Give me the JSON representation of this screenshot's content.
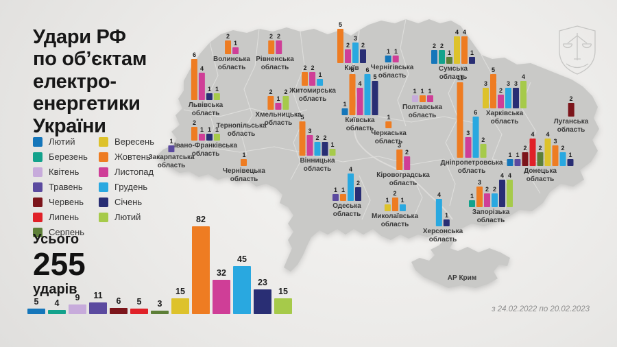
{
  "title": {
    "lines": [
      "Удари РФ",
      "по об’єктам",
      "електро-",
      "енергетики",
      "України"
    ]
  },
  "date_range": "з 24.02.2022 по 20.02.2023",
  "total": {
    "label_top": "Усього",
    "value": "255",
    "label_bottom": "ударів"
  },
  "map": {
    "crimea_label": "АР Крим"
  },
  "logo": {
    "icon": "prosecutor-general-emblem"
  },
  "months": [
    {
      "key": "feb22",
      "label": "Лютий",
      "color": "#1576ba"
    },
    {
      "key": "mar",
      "label": "Березень",
      "color": "#13a28c"
    },
    {
      "key": "apr",
      "label": "Квітень",
      "color": "#c7abdb"
    },
    {
      "key": "may",
      "label": "Травень",
      "color": "#5b4a9f"
    },
    {
      "key": "jun",
      "label": "Червень",
      "color": "#7c151b"
    },
    {
      "key": "jul",
      "label": "Липень",
      "color": "#e02128"
    },
    {
      "key": "aug",
      "label": "Серпень",
      "color": "#5d7f37"
    },
    {
      "key": "sep",
      "label": "Вересень",
      "color": "#ddc22b"
    },
    {
      "key": "oct",
      "label": "Жовтень",
      "color": "#ee7c22"
    },
    {
      "key": "nov",
      "label": "Листопад",
      "color": "#cf3e97"
    },
    {
      "key": "dec",
      "label": "Грудень",
      "color": "#29a8e0"
    },
    {
      "key": "jan",
      "label": "Січень",
      "color": "#292e74"
    },
    {
      "key": "feb23",
      "label": "Лютий",
      "color": "#a6ca4a"
    }
  ],
  "chart_data": [
    {
      "type": "bar",
      "title": "Усього 255 ударів",
      "categories": [
        "Лютий (2022)",
        "Березень",
        "Квітень",
        "Травень",
        "Червень",
        "Липень",
        "Серпень",
        "Вересень",
        "Жовтень",
        "Листопад",
        "Грудень",
        "Січень",
        "Лютий (2023)"
      ],
      "values": [
        5,
        4,
        9,
        11,
        6,
        5,
        3,
        15,
        82,
        32,
        45,
        23,
        15
      ],
      "ylim": [
        0,
        82
      ],
      "legend_position": "left",
      "grid": false
    },
    {
      "type": "bar",
      "subtype": "map-small-multiples",
      "title": "Удари по областях України",
      "regions": [
        {
          "id": "volyn",
          "lines": [
            "Волинська",
            "область"
          ],
          "bars": [
            {
              "month": "oct",
              "value": 2
            },
            {
              "month": "nov",
              "value": 1
            }
          ]
        },
        {
          "id": "rivne",
          "lines": [
            "Рівненська",
            "область"
          ],
          "bars": [
            {
              "month": "oct",
              "value": 2
            },
            {
              "month": "nov",
              "value": 2
            }
          ]
        },
        {
          "id": "lviv",
          "lines": [
            "Львівська",
            "область"
          ],
          "bars": [
            {
              "month": "oct",
              "value": 6
            },
            {
              "month": "nov",
              "value": 4
            },
            {
              "month": "jan",
              "value": 1
            },
            {
              "month": "feb23",
              "value": 1
            }
          ]
        },
        {
          "id": "zakarpattia",
          "lines": [
            "Закарпатська",
            "область"
          ],
          "bars": [
            {
              "month": "may",
              "value": 1
            }
          ]
        },
        {
          "id": "ivano-frankivsk",
          "lines": [
            "Івано-Франківська",
            "область"
          ],
          "bars": [
            {
              "month": "oct",
              "value": 2
            },
            {
              "month": "nov",
              "value": 1
            },
            {
              "month": "jan",
              "value": 1
            },
            {
              "month": "feb23",
              "value": 1
            }
          ]
        },
        {
          "id": "ternopil",
          "lines": [
            "Тернопільська",
            "область"
          ],
          "bars": []
        },
        {
          "id": "chernivtsi",
          "lines": [
            "Чернівецька",
            "область"
          ],
          "bars": [
            {
              "month": "oct",
              "value": 1
            }
          ]
        },
        {
          "id": "khmelnytskyi",
          "lines": [
            "Хмельницька",
            "область"
          ],
          "bars": [
            {
              "month": "oct",
              "value": 2
            },
            {
              "month": "nov",
              "value": 1
            },
            {
              "month": "feb23",
              "value": 2
            }
          ]
        },
        {
          "id": "zhytomyr",
          "lines": [
            "Житомирська",
            "область"
          ],
          "bars": [
            {
              "month": "oct",
              "value": 2
            },
            {
              "month": "nov",
              "value": 2
            },
            {
              "month": "dec",
              "value": 1
            }
          ]
        },
        {
          "id": "kyiv-city",
          "lines": [
            "Київ"
          ],
          "bars": [
            {
              "month": "oct",
              "value": 5
            },
            {
              "month": "nov",
              "value": 2
            },
            {
              "month": "dec",
              "value": 3
            },
            {
              "month": "jan",
              "value": 2
            }
          ]
        },
        {
          "id": "kyiv-oblast",
          "lines": [
            "Київська",
            "область"
          ],
          "bars": [
            {
              "month": "feb22",
              "value": 1
            },
            {
              "month": "oct",
              "value": 6
            },
            {
              "month": "nov",
              "value": 4
            },
            {
              "month": "dec",
              "value": 6
            },
            {
              "month": "jan",
              "value": 5
            }
          ]
        },
        {
          "id": "chernihiv",
          "lines": [
            "Чернігівська",
            "область"
          ],
          "bars": [
            {
              "month": "feb22",
              "value": 1
            },
            {
              "month": "nov",
              "value": 1
            }
          ]
        },
        {
          "id": "sumy",
          "lines": [
            "Сумська",
            "область"
          ],
          "bars": [
            {
              "month": "feb22",
              "value": 2
            },
            {
              "month": "mar",
              "value": 2
            },
            {
              "month": "aug",
              "value": 1
            },
            {
              "month": "sep",
              "value": 4
            },
            {
              "month": "oct",
              "value": 4
            },
            {
              "month": "jan",
              "value": 1
            }
          ]
        },
        {
          "id": "poltava",
          "lines": [
            "Полтавська",
            "область"
          ],
          "bars": [
            {
              "month": "apr",
              "value": 1
            },
            {
              "month": "oct",
              "value": 1
            },
            {
              "month": "nov",
              "value": 1
            }
          ]
        },
        {
          "id": "cherkasy",
          "lines": [
            "Черкаська",
            "область"
          ],
          "bars": [
            {
              "month": "oct",
              "value": 1
            }
          ]
        },
        {
          "id": "kirovohrad",
          "lines": [
            "Кіровоградська",
            "область"
          ],
          "bars": [
            {
              "month": "oct",
              "value": 3
            },
            {
              "month": "nov",
              "value": 2
            }
          ]
        },
        {
          "id": "vinnytsia",
          "lines": [
            "Вінницька",
            "область"
          ],
          "bars": [
            {
              "month": "oct",
              "value": 5
            },
            {
              "month": "nov",
              "value": 3
            },
            {
              "month": "dec",
              "value": 2
            },
            {
              "month": "jan",
              "value": 2
            },
            {
              "month": "feb23",
              "value": 1
            }
          ]
        },
        {
          "id": "odesa",
          "lines": [
            "Одеська",
            "область"
          ],
          "bars": [
            {
              "month": "may",
              "value": 1
            },
            {
              "month": "oct",
              "value": 1
            },
            {
              "month": "dec",
              "value": 4
            },
            {
              "month": "jan",
              "value": 2
            }
          ]
        },
        {
          "id": "mykolaiv",
          "lines": [
            "Миколаївська",
            "область"
          ],
          "bars": [
            {
              "month": "sep",
              "value": 1
            },
            {
              "month": "oct",
              "value": 2
            },
            {
              "month": "dec",
              "value": 1
            }
          ]
        },
        {
          "id": "kherson",
          "lines": [
            "Херсонська",
            "область"
          ],
          "bars": [
            {
              "month": "dec",
              "value": 4
            },
            {
              "month": "jan",
              "value": 1
            }
          ]
        },
        {
          "id": "zaporizhzhia",
          "lines": [
            "Запорізька",
            "область"
          ],
          "bars": [
            {
              "month": "mar",
              "value": 1
            },
            {
              "month": "oct",
              "value": 3
            },
            {
              "month": "nov",
              "value": 2
            },
            {
              "month": "dec",
              "value": 2
            },
            {
              "month": "jan",
              "value": 4
            },
            {
              "month": "feb23",
              "value": 4
            }
          ]
        },
        {
          "id": "dnipro",
          "lines": [
            "Дніпропетровська",
            "область"
          ],
          "bars": [
            {
              "month": "oct",
              "value": 11
            },
            {
              "month": "nov",
              "value": 3
            },
            {
              "month": "dec",
              "value": 6
            },
            {
              "month": "feb23",
              "value": 2
            }
          ]
        },
        {
          "id": "kharkiv",
          "lines": [
            "Харківська",
            "область"
          ],
          "bars": [
            {
              "month": "sep",
              "value": 3
            },
            {
              "month": "oct",
              "value": 5
            },
            {
              "month": "nov",
              "value": 2
            },
            {
              "month": "dec",
              "value": 3
            },
            {
              "month": "jan",
              "value": 3
            },
            {
              "month": "feb23",
              "value": 4
            }
          ]
        },
        {
          "id": "luhansk",
          "lines": [
            "Луганська",
            "область"
          ],
          "bars": [
            {
              "month": "jun",
              "value": 2
            }
          ]
        },
        {
          "id": "donetsk",
          "lines": [
            "Донецька",
            "область"
          ],
          "bars": [
            {
              "month": "feb22",
              "value": 1
            },
            {
              "month": "may",
              "value": 1
            },
            {
              "month": "jun",
              "value": 2
            },
            {
              "month": "jul",
              "value": 4
            },
            {
              "month": "aug",
              "value": 2
            },
            {
              "month": "sep",
              "value": 4
            },
            {
              "month": "oct",
              "value": 3
            },
            {
              "month": "dec",
              "value": 2
            },
            {
              "month": "jan",
              "value": 1
            }
          ]
        },
        {
          "id": "crimea",
          "lines": [
            "АР Крим"
          ],
          "bars": []
        }
      ]
    }
  ]
}
